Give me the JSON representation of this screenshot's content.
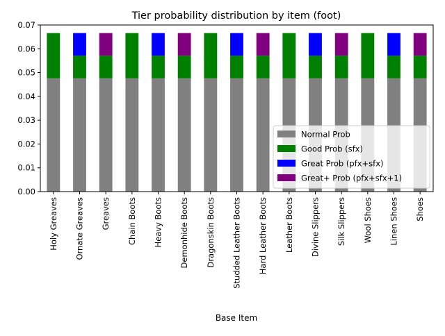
{
  "chart_data": {
    "type": "bar",
    "stacked": true,
    "title": "Tier probability distribution by item (foot)",
    "xlabel": "Base Item",
    "ylabel": "",
    "ylim": [
      0,
      0.07
    ],
    "yticks": [
      0.0,
      0.01,
      0.02,
      0.03,
      0.04,
      0.05,
      0.06,
      0.07
    ],
    "ytick_labels": [
      "0.00",
      "0.01",
      "0.02",
      "0.03",
      "0.04",
      "0.05",
      "0.06",
      "0.07"
    ],
    "grid": false,
    "legend_position": "lower-right",
    "categories": [
      "Holy Greaves",
      "Ornate Greaves",
      "Greaves",
      "Chain Boots",
      "Heavy Boots",
      "Demonhide Boots",
      "Dragonskin Boots",
      "Studded Leather Boots",
      "Hard Leather Boots",
      "Leather Boots",
      "Divine Slippers",
      "Silk Slippers",
      "Wool Shoes",
      "Linen Shoes",
      "Shoes"
    ],
    "series": [
      {
        "name": "Normal Prob",
        "color": "#808080",
        "values": [
          0.0476,
          0.0476,
          0.0476,
          0.0476,
          0.0476,
          0.0476,
          0.0476,
          0.0476,
          0.0476,
          0.0476,
          0.0476,
          0.0476,
          0.0476,
          0.0476,
          0.0476
        ]
      },
      {
        "name": "Good Prob (sfx)",
        "color": "#008000",
        "values": [
          0.019,
          0.0095,
          0.0095,
          0.019,
          0.0095,
          0.0095,
          0.019,
          0.0095,
          0.0095,
          0.019,
          0.0095,
          0.0095,
          0.019,
          0.0095,
          0.0095
        ]
      },
      {
        "name": "Great Prob (pfx+sfx)",
        "color": "#0000ff",
        "values": [
          0,
          0.0095,
          0,
          0,
          0.0095,
          0,
          0,
          0.0095,
          0,
          0,
          0.0095,
          0,
          0,
          0.0095,
          0
        ]
      },
      {
        "name": "Great+ Prob (pfx+sfx+1)",
        "color": "#800080",
        "values": [
          0,
          0,
          0.0095,
          0,
          0,
          0.0095,
          0,
          0,
          0.0095,
          0,
          0,
          0.0095,
          0,
          0,
          0.0095
        ]
      }
    ]
  }
}
